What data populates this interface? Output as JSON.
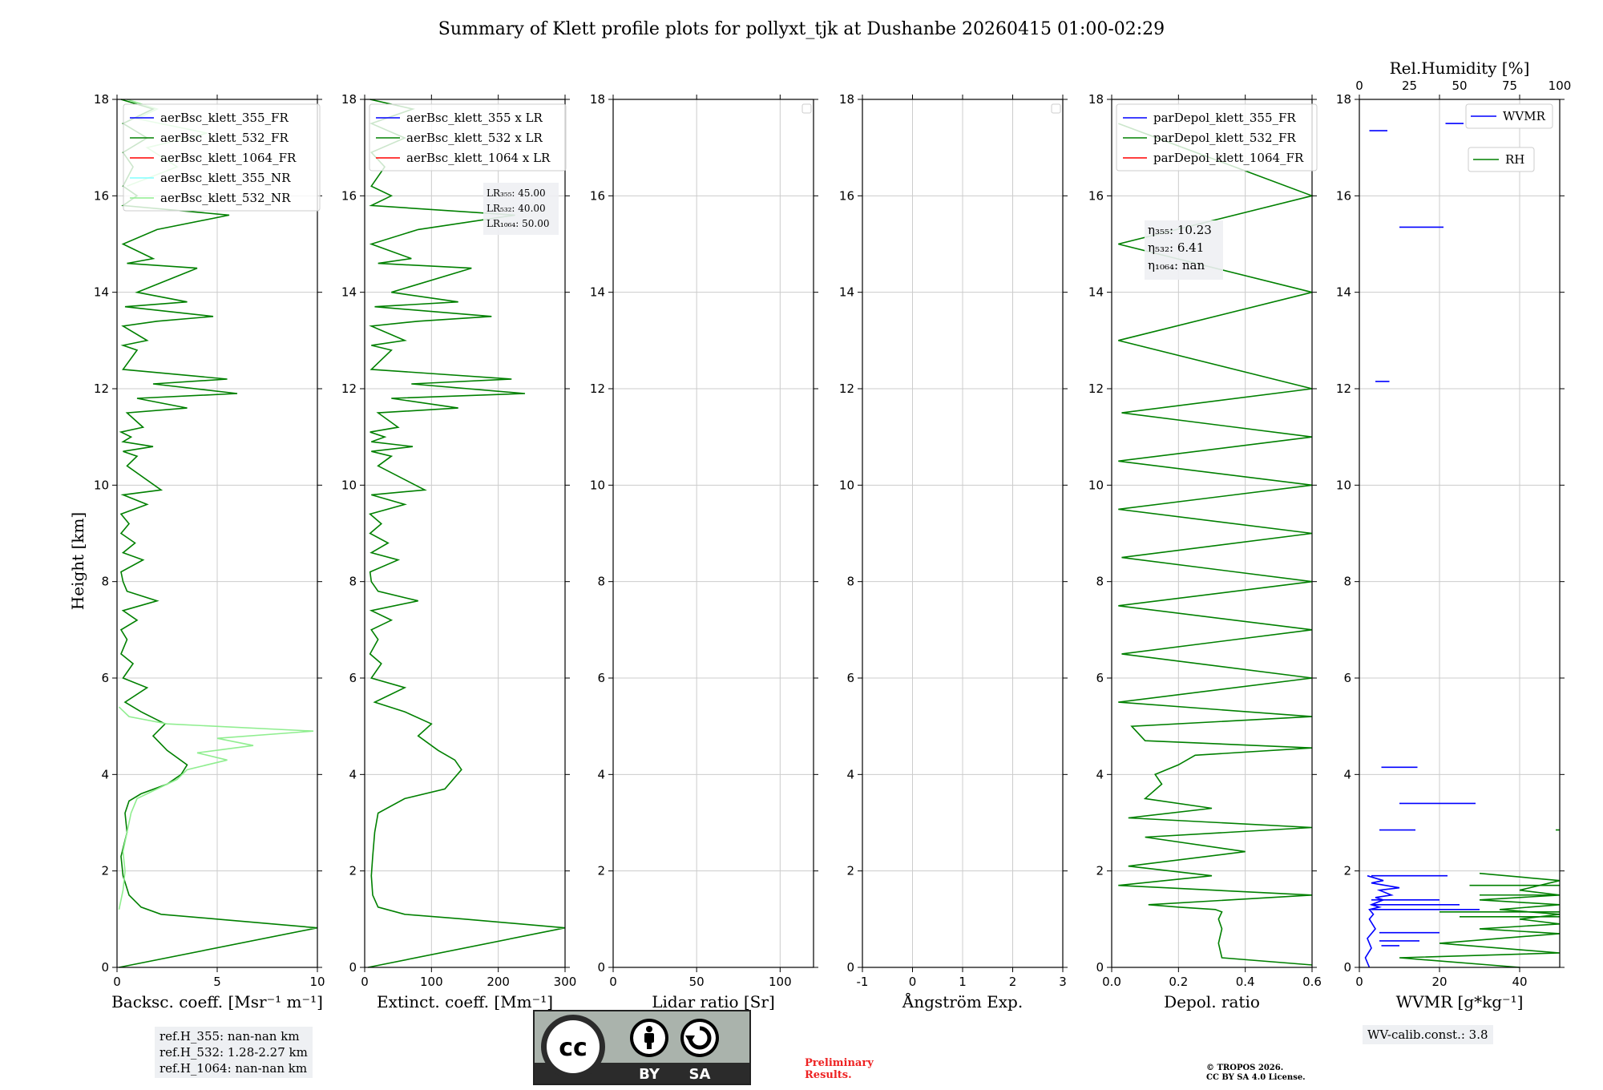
{
  "figure": {
    "title": "Summary of Klett profile plots for pollyxt_tjk at Dushanbe 20260415 01:00-02:29",
    "ylabel": "Height [km]"
  },
  "chart_data": [
    {
      "type": "line",
      "xlabel": "Backsc. coeff. [Msr⁻¹ m⁻¹]",
      "xlim": [
        0,
        10
      ],
      "xticks": [
        0,
        5,
        10
      ],
      "ylim": [
        0,
        18
      ],
      "yticks": [
        0,
        2,
        4,
        6,
        8,
        10,
        12,
        14,
        16,
        18
      ],
      "legend": [
        {
          "label": "aerBsc_klett_355_FR",
          "color": "#0000ff"
        },
        {
          "label": "aerBsc_klett_532_FR",
          "color": "#008000"
        },
        {
          "label": "aerBsc_klett_1064_FR",
          "color": "#ff0000"
        },
        {
          "label": "aerBsc_klett_355_NR",
          "color": "#80ffff"
        },
        {
          "label": "aerBsc_klett_532_NR",
          "color": "#90ee90"
        }
      ],
      "series": [
        {
          "name": "aerBsc_klett_532_FR",
          "color": "#008000",
          "x": [
            0.1,
            10,
            5,
            2.2,
            1.2,
            0.6,
            0.3,
            0.2,
            0.5,
            0.4,
            0.6,
            1.2,
            2.5,
            3.2,
            3.5,
            2.5,
            1.8,
            2.4,
            1.2,
            0.4,
            1.5,
            0.3,
            0.8,
            0.2,
            0.5,
            0.2,
            1.0,
            0.3,
            2.0,
            0.5,
            0.3,
            0.2,
            1.3,
            0.3,
            0.9,
            0.2,
            0.6,
            0.2,
            1.5,
            0.3,
            2.2,
            0.5,
            1.0,
            0.3,
            1.8,
            0.3,
            0.7,
            0.2,
            1.3,
            0.5,
            3.5,
            1.0,
            6.0,
            1.8,
            5.5,
            0.3,
            1.0,
            0.3,
            1.5,
            0.3,
            2.0,
            4.8,
            0.4,
            3.5,
            1.0,
            4.0,
            0.5,
            1.8,
            0.3,
            2.0,
            5.6,
            0.3,
            1.0,
            0.3,
            0.8,
            0.3,
            1.5,
            0.3,
            1.8,
            0.2
          ],
          "y": [
            0.0,
            0.82,
            1.0,
            1.1,
            1.25,
            1.5,
            1.9,
            2.3,
            2.8,
            3.2,
            3.45,
            3.6,
            3.8,
            4.0,
            4.2,
            4.5,
            4.8,
            5.05,
            5.3,
            5.5,
            5.8,
            6.0,
            6.3,
            6.5,
            6.8,
            7.0,
            7.2,
            7.4,
            7.6,
            7.8,
            8.0,
            8.2,
            8.45,
            8.6,
            8.8,
            9.0,
            9.2,
            9.4,
            9.6,
            9.8,
            9.9,
            10.4,
            10.6,
            10.7,
            10.8,
            10.9,
            11.0,
            11.1,
            11.2,
            11.5,
            11.6,
            11.8,
            11.9,
            12.1,
            12.2,
            12.4,
            12.8,
            12.9,
            13.0,
            13.3,
            13.4,
            13.5,
            13.7,
            13.8,
            14.0,
            14.5,
            14.6,
            14.7,
            15.0,
            15.3,
            15.6,
            15.8,
            16.0,
            16.2,
            16.6,
            16.9,
            17.2,
            17.5,
            17.8,
            18.0
          ]
        },
        {
          "name": "aerBsc_klett_532_NR",
          "color": "#90ee90",
          "x": [
            0.1,
            0.3,
            0.4,
            0.3,
            0.5,
            0.7,
            1.0,
            2.0,
            3.0,
            3.5,
            5.5,
            4.0,
            6.8,
            5.0,
            9.8,
            2.5,
            0.6,
            0.1
          ],
          "y": [
            1.2,
            1.6,
            2.0,
            2.4,
            2.8,
            3.2,
            3.5,
            3.7,
            3.9,
            4.1,
            4.3,
            4.45,
            4.6,
            4.75,
            4.9,
            5.05,
            5.2,
            5.4
          ]
        },
        {
          "name": "aerBsc_klett_532_NR_upper",
          "color": "#90ee90",
          "x": [
            0.5,
            3.0,
            1.5,
            4.5,
            1.0,
            2.0,
            0.5
          ],
          "y": [
            16.2,
            16.6,
            17.0,
            17.3,
            17.6,
            17.8,
            18.0
          ]
        }
      ]
    },
    {
      "type": "line",
      "xlabel": "Extinct. coeff. [Mm⁻¹]",
      "xlim": [
        0,
        300
      ],
      "xticks": [
        0,
        100,
        200,
        300
      ],
      "ylim": [
        0,
        18
      ],
      "yticks": [
        0,
        2,
        4,
        6,
        8,
        10,
        12,
        14,
        16,
        18
      ],
      "legend": [
        {
          "label": "aerBsc_klett_355 x LR",
          "color": "#0000ff"
        },
        {
          "label": "aerBsc_klett_532 x LR",
          "color": "#008000"
        },
        {
          "label": "aerBsc_klett_1064 x LR",
          "color": "#ff0000"
        }
      ],
      "annotation": [
        "LR₃₅₅: 45.00",
        "LR₅₃₂: 40.00",
        "LR₁₀₆₄: 50.00"
      ],
      "series": [
        {
          "name": "aerBsc_klett_532 x LR",
          "color": "#008000",
          "x": [
            5,
            300,
            150,
            60,
            20,
            12,
            10,
            12,
            15,
            20,
            60,
            120,
            145,
            135,
            110,
            80,
            100,
            60,
            15,
            60,
            10,
            25,
            8,
            20,
            10,
            40,
            10,
            80,
            20,
            10,
            8,
            50,
            10,
            35,
            8,
            25,
            8,
            60,
            10,
            90,
            20,
            40,
            10,
            72,
            10,
            30,
            8,
            50,
            20,
            140,
            40,
            240,
            70,
            220,
            10,
            40,
            10,
            60,
            10,
            80,
            190,
            15,
            140,
            40,
            160,
            20,
            70,
            10,
            80,
            225,
            10,
            40,
            10,
            30,
            10,
            60,
            10,
            72,
            8
          ],
          "y": [
            0.0,
            0.82,
            1.0,
            1.1,
            1.25,
            1.5,
            1.9,
            2.3,
            2.8,
            3.2,
            3.5,
            3.7,
            4.1,
            4.3,
            4.5,
            4.8,
            5.05,
            5.3,
            5.5,
            5.8,
            6.0,
            6.3,
            6.5,
            6.8,
            7.0,
            7.2,
            7.4,
            7.6,
            7.8,
            8.0,
            8.2,
            8.45,
            8.6,
            8.8,
            9.0,
            9.2,
            9.4,
            9.6,
            9.8,
            9.9,
            10.4,
            10.6,
            10.7,
            10.8,
            10.9,
            11.0,
            11.1,
            11.2,
            11.5,
            11.6,
            11.8,
            11.9,
            12.1,
            12.2,
            12.4,
            12.8,
            12.9,
            13.0,
            13.3,
            13.4,
            13.5,
            13.7,
            13.8,
            14.0,
            14.5,
            14.6,
            14.7,
            15.0,
            15.3,
            15.6,
            15.8,
            16.0,
            16.2,
            16.6,
            16.9,
            17.2,
            17.5,
            17.8,
            18.0
          ]
        }
      ]
    },
    {
      "type": "line",
      "xlabel": "Lidar ratio [Sr]",
      "xlim": [
        0,
        120
      ],
      "xticks": [
        0,
        50,
        100
      ],
      "ylim": [
        0,
        18
      ],
      "yticks": [
        0,
        2,
        4,
        6,
        8,
        10,
        12,
        14,
        16,
        18
      ],
      "legend": [],
      "series": []
    },
    {
      "type": "line",
      "xlabel": "Ångström Exp.",
      "xlim": [
        -1,
        3
      ],
      "xticks": [
        -1,
        0,
        1,
        2,
        3
      ],
      "ylim": [
        0,
        18
      ],
      "yticks": [
        0,
        2,
        4,
        6,
        8,
        10,
        12,
        14,
        16,
        18
      ],
      "legend": [],
      "series": []
    },
    {
      "type": "line",
      "xlabel": "Depol. ratio",
      "xlim": [
        0,
        0.6
      ],
      "xticks": [
        0.0,
        0.2,
        0.4,
        0.6
      ],
      "ylim": [
        0,
        18
      ],
      "yticks": [
        0,
        2,
        4,
        6,
        8,
        10,
        12,
        14,
        16,
        18
      ],
      "legend": [
        {
          "label": "parDepol_klett_355_FR",
          "color": "#0000ff"
        },
        {
          "label": "parDepol_klett_532_FR",
          "color": "#008000"
        },
        {
          "label": "parDepol_klett_1064_FR",
          "color": "#ff0000"
        }
      ],
      "annotation": [
        "η₃₅₅: 10.23",
        "η₅₃₂: 6.41",
        "η₁₀₆₄: nan"
      ],
      "series": [
        {
          "name": "parDepol_klett_532_FR",
          "color": "#008000",
          "x": [
            0.6,
            0.33,
            0.32,
            0.33,
            0.32,
            0.33,
            0.31,
            0.2,
            0.11,
            0.6,
            0.02,
            0.3,
            0.05,
            0.4,
            0.1,
            0.6,
            0.05,
            0.3,
            0.1,
            0.15,
            0.13,
            0.2,
            0.25,
            0.6,
            0.1,
            0.06,
            0.6,
            0.02,
            0.6,
            0.03,
            0.6,
            0.02,
            0.6,
            0.03,
            0.6,
            0.02,
            0.6,
            0.02,
            0.6,
            0.03,
            0.6,
            0.02,
            0.6,
            0.02,
            0.6,
            0.02
          ],
          "y": [
            0.05,
            0.2,
            0.5,
            0.8,
            1.0,
            1.15,
            1.2,
            1.25,
            1.3,
            1.5,
            1.7,
            1.9,
            2.1,
            2.4,
            2.7,
            2.9,
            3.1,
            3.3,
            3.5,
            3.8,
            4.0,
            4.2,
            4.4,
            4.55,
            4.7,
            5.0,
            5.2,
            5.5,
            6.0,
            6.5,
            7.0,
            7.5,
            8.0,
            8.5,
            9.0,
            9.5,
            10.0,
            10.5,
            11.0,
            11.5,
            12.0,
            13.0,
            14.0,
            15.0,
            16.0,
            17.5
          ]
        }
      ]
    },
    {
      "type": "line",
      "xlabel": "WVMR [g*kg⁻¹]",
      "xlim": [
        0,
        50
      ],
      "xticks": [
        0,
        20,
        40
      ],
      "ylim": [
        0,
        18
      ],
      "yticks": [
        0,
        2,
        4,
        6,
        8,
        10,
        12,
        14,
        16,
        18
      ],
      "x2label": "Rel.Humidity [%]",
      "x2lim": [
        0,
        100
      ],
      "x2ticks": [
        0,
        25,
        50,
        75,
        100
      ],
      "legend": [
        {
          "label": "WVMR",
          "color": "#0000ff"
        },
        {
          "label": "RH",
          "color": "#008000"
        }
      ],
      "series": [
        {
          "name": "WVMR",
          "color": "#0000ff",
          "x": [
            2.5,
            1.5,
            3.0,
            2.0,
            4.0,
            2.5,
            3.5,
            2.5,
            5.0,
            3.0,
            6.0,
            4.0,
            8.0,
            5.0,
            10.0,
            3.0,
            6.0,
            2.0
          ],
          "y": [
            0.0,
            0.2,
            0.4,
            0.6,
            0.8,
            1.0,
            1.1,
            1.2,
            1.25,
            1.3,
            1.4,
            1.45,
            1.5,
            1.6,
            1.65,
            1.75,
            1.8,
            1.9
          ]
        },
        {
          "name": "RH",
          "color": "#008000",
          "x": [
            40,
            10,
            55,
            20,
            75,
            30,
            100,
            40,
            100,
            35,
            100,
            30,
            100,
            40,
            60,
            30
          ],
          "y": [
            0.0,
            0.2,
            0.3,
            0.5,
            0.7,
            0.8,
            0.9,
            1.0,
            1.1,
            1.2,
            1.3,
            1.4,
            1.5,
            1.6,
            1.8,
            1.95
          ]
        }
      ],
      "segments": [
        {
          "series": "WVMR",
          "x0": 5.5,
          "x1": 10.0,
          "y": 0.45
        },
        {
          "series": "WVMR",
          "x0": 5.0,
          "x1": 15.0,
          "y": 0.55
        },
        {
          "series": "WVMR",
          "x0": 5.0,
          "x1": 20.0,
          "y": 0.72
        },
        {
          "series": "WVMR",
          "x0": 3.0,
          "x1": 30.0,
          "y": 1.2
        },
        {
          "series": "WVMR",
          "x0": 3.0,
          "x1": 25.0,
          "y": 1.3
        },
        {
          "series": "WVMR",
          "x0": 3.0,
          "x1": 20.0,
          "y": 1.4
        },
        {
          "series": "WVMR",
          "x0": 3.0,
          "x1": 22.0,
          "y": 1.9
        },
        {
          "series": "WVMR",
          "x0": 5.0,
          "x1": 14.0,
          "y": 2.85
        },
        {
          "series": "WVMR",
          "x0": 10.0,
          "x1": 29.0,
          "y": 3.4
        },
        {
          "series": "WVMR",
          "x0": 5.5,
          "x1": 14.5,
          "y": 4.15
        },
        {
          "series": "WVMR",
          "x0": 4.0,
          "x1": 7.5,
          "y": 12.15
        },
        {
          "series": "WVMR",
          "x0": 10.0,
          "x1": 21.0,
          "y": 15.35
        },
        {
          "series": "WVMR",
          "x0": 21.5,
          "x1": 26.0,
          "y": 17.5
        },
        {
          "series": "WVMR",
          "x0": 2.5,
          "x1": 7.0,
          "y": 17.35
        },
        {
          "series": "RH",
          "x0": 50.0,
          "x1": 100.0,
          "y": 1.05
        },
        {
          "series": "RH",
          "x0": 40.0,
          "x1": 100.0,
          "y": 1.15
        },
        {
          "series": "RH",
          "x0": 60.0,
          "x1": 100.0,
          "y": 1.5
        },
        {
          "series": "RH",
          "x0": 55.0,
          "x1": 100.0,
          "y": 1.7
        },
        {
          "series": "RH",
          "x0": 98.0,
          "x1": 100.0,
          "y": 2.85
        }
      ]
    }
  ],
  "info": {
    "refh_355": "ref.H_355: nan-nan km",
    "refh_532": "ref.H_532: 1.28-2.27 km",
    "refh_1064": "ref.H_1064: nan-nan km",
    "wv_calib": "WV-calib.const.: 3.8",
    "prelim_1": "Preliminary",
    "prelim_2": "Results.",
    "copyright_1": "© TROPOS 2026.",
    "copyright_2": "CC BY SA 4.0 License."
  },
  "license_badge": {
    "cc": "cc",
    "by": "BY",
    "sa": "SA"
  }
}
